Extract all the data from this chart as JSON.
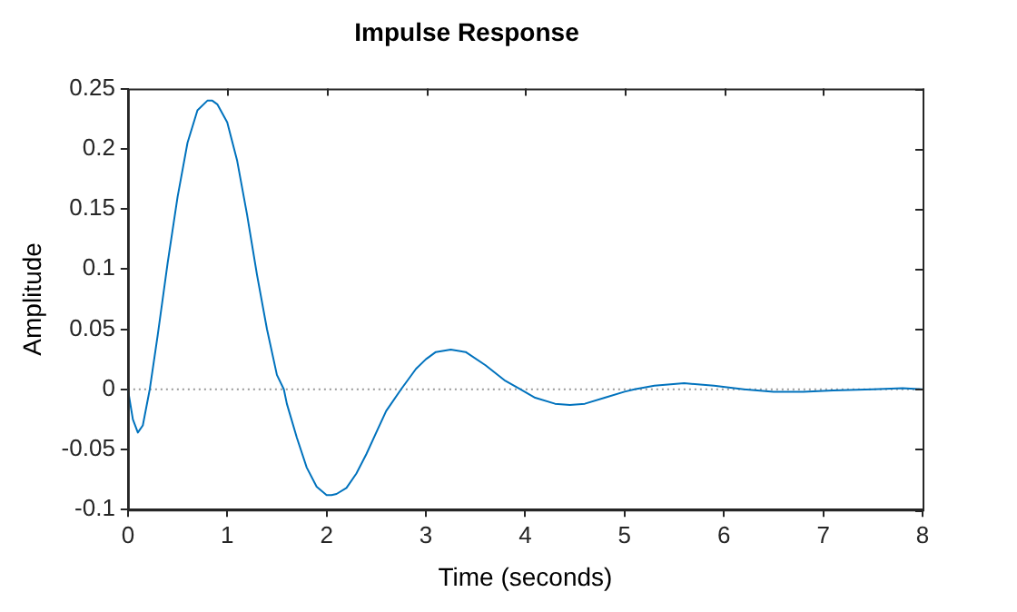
{
  "chart_data": {
    "type": "line",
    "title": "Impulse Response",
    "xlabel": "Time (seconds)",
    "ylabel": "Amplitude",
    "xlim": [
      0,
      8
    ],
    "xticks": [
      0,
      1,
      2,
      3,
      4,
      5,
      6,
      7,
      8
    ],
    "ylim": [
      -0.1,
      0.25
    ],
    "yticks": [
      -0.1,
      -0.05,
      0,
      0.05,
      0.1,
      0.15,
      0.2,
      0.25
    ],
    "grid": false,
    "legend": false,
    "marker": "none",
    "line_style": "solid",
    "ref_lines": [
      {
        "axis": "y",
        "value": 0,
        "color": "#999999",
        "line_style": "dotted"
      }
    ],
    "series": [
      {
        "color": "#0072bd",
        "x": [
          0,
          0.05,
          0.1,
          0.15,
          0.22,
          0.3,
          0.4,
          0.5,
          0.6,
          0.7,
          0.8,
          0.85,
          0.9,
          1.0,
          1.1,
          1.2,
          1.3,
          1.4,
          1.5,
          1.57,
          1.6,
          1.7,
          1.8,
          1.9,
          2.0,
          2.05,
          2.1,
          2.2,
          2.3,
          2.4,
          2.5,
          2.6,
          2.75,
          2.9,
          3.0,
          3.1,
          3.25,
          3.4,
          3.6,
          3.8,
          3.95,
          4.1,
          4.3,
          4.45,
          4.6,
          4.8,
          5.0,
          5.1,
          5.3,
          5.6,
          5.9,
          6.2,
          6.5,
          6.8,
          7.1,
          7.5,
          7.8,
          8
        ],
        "values": [
          0,
          -0.025,
          -0.036,
          -0.03,
          0,
          0.045,
          0.105,
          0.16,
          0.205,
          0.232,
          0.24,
          0.24,
          0.237,
          0.222,
          0.19,
          0.145,
          0.095,
          0.05,
          0.012,
          0,
          -0.012,
          -0.04,
          -0.065,
          -0.081,
          -0.088,
          -0.088,
          -0.087,
          -0.082,
          -0.07,
          -0.054,
          -0.036,
          -0.018,
          0,
          0.017,
          0.025,
          0.031,
          0.033,
          0.031,
          0.02,
          0.007,
          0,
          -0.007,
          -0.012,
          -0.013,
          -0.012,
          -0.007,
          -0.002,
          0,
          0.003,
          0.005,
          0.003,
          0,
          -0.002,
          -0.002,
          -0.001,
          0,
          0.001,
          0
        ]
      }
    ]
  }
}
